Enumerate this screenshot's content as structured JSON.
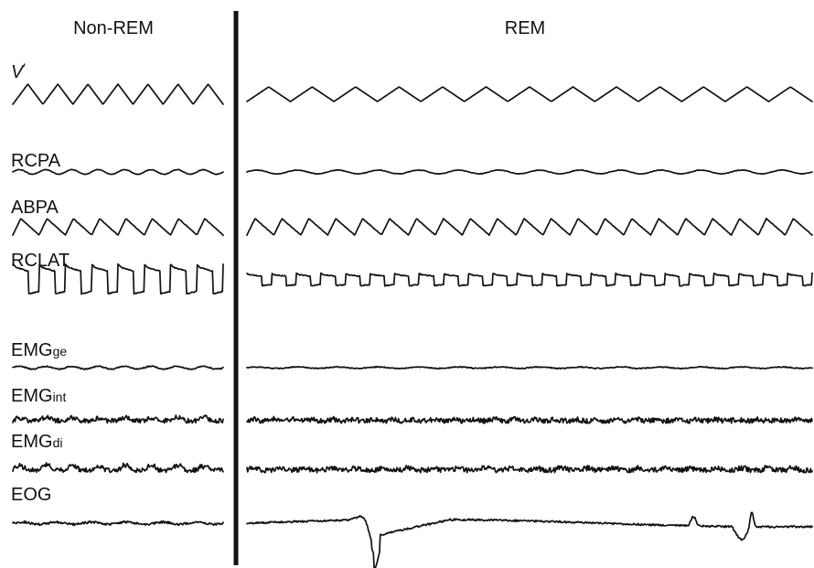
{
  "chart_data": {
    "type": "line",
    "panels": [
      {
        "key": "nrem",
        "title": "Non-REM"
      },
      {
        "key": "rem",
        "title": "REM"
      }
    ],
    "channels": [
      {
        "id": "v",
        "label": "V",
        "label_suffix": "'",
        "label_sub": "",
        "italic": true,
        "nrem": {
          "cycles": 7,
          "amplitude": 11,
          "shape": "tri",
          "noise": 0
        },
        "rem": {
          "cycles": 13,
          "amplitude": 8,
          "shape": "tri",
          "noise": 0
        }
      },
      {
        "id": "rcpa",
        "label": "RCPA",
        "label_suffix": "",
        "label_sub": "",
        "italic": false,
        "nrem": {
          "cycles": 8,
          "amplitude": 2.5,
          "shape": "sin",
          "noise": 0.3
        },
        "rem": {
          "cycles": 14,
          "amplitude": 2,
          "shape": "sin",
          "noise": 0.3
        }
      },
      {
        "id": "abpa",
        "label": "ABPA",
        "label_suffix": "",
        "label_sub": "",
        "italic": false,
        "nrem": {
          "cycles": 8,
          "amplitude": 9,
          "shape": "saw",
          "noise": 0.3
        },
        "rem": {
          "cycles": 21,
          "amplitude": 9,
          "shape": "saw",
          "noise": 0.3
        }
      },
      {
        "id": "rclat",
        "label": "RCLAT",
        "label_suffix": "",
        "label_sub": "",
        "italic": false,
        "nrem": {
          "cycles": 8,
          "amplitude": 17,
          "shape": "sq",
          "noise": 0.5
        },
        "rem": {
          "cycles": 23,
          "amplitude": 7,
          "shape": "sq",
          "noise": 0.5
        }
      },
      {
        "id": "emgge",
        "label": "EMG",
        "label_suffix": "",
        "label_sub": "ge",
        "italic": false,
        "nrem": {
          "cycles": 8,
          "amplitude": 1.5,
          "shape": "sin",
          "noise": 0.6
        },
        "rem": {
          "cycles": 14,
          "amplitude": 0.8,
          "shape": "sin",
          "noise": 0.5
        }
      },
      {
        "id": "emgint",
        "label": "EMG",
        "label_suffix": "",
        "label_sub": "int",
        "italic": false,
        "nrem": {
          "cycles": 8,
          "amplitude": 4,
          "shape": "burst",
          "noise": 2.5
        },
        "rem": {
          "cycles": 28,
          "amplitude": 2,
          "shape": "burst",
          "noise": 2.8
        }
      },
      {
        "id": "emgdi",
        "label": "EMG",
        "label_suffix": "",
        "label_sub": "di",
        "italic": false,
        "nrem": {
          "cycles": 8,
          "amplitude": 6,
          "shape": "burst",
          "noise": 2.5
        },
        "rem": {
          "cycles": 22,
          "amplitude": 3,
          "shape": "burst",
          "noise": 2.8
        }
      },
      {
        "id": "eog",
        "label": "EOG",
        "label_suffix": "",
        "label_sub": "",
        "italic": false,
        "nrem": {
          "cycles": 6,
          "amplitude": 1.2,
          "shape": "sin",
          "noise": 1.2
        },
        "rem": {
          "cycles": 0,
          "amplitude": 0,
          "shape": "eog",
          "noise": 1.0
        }
      }
    ]
  }
}
